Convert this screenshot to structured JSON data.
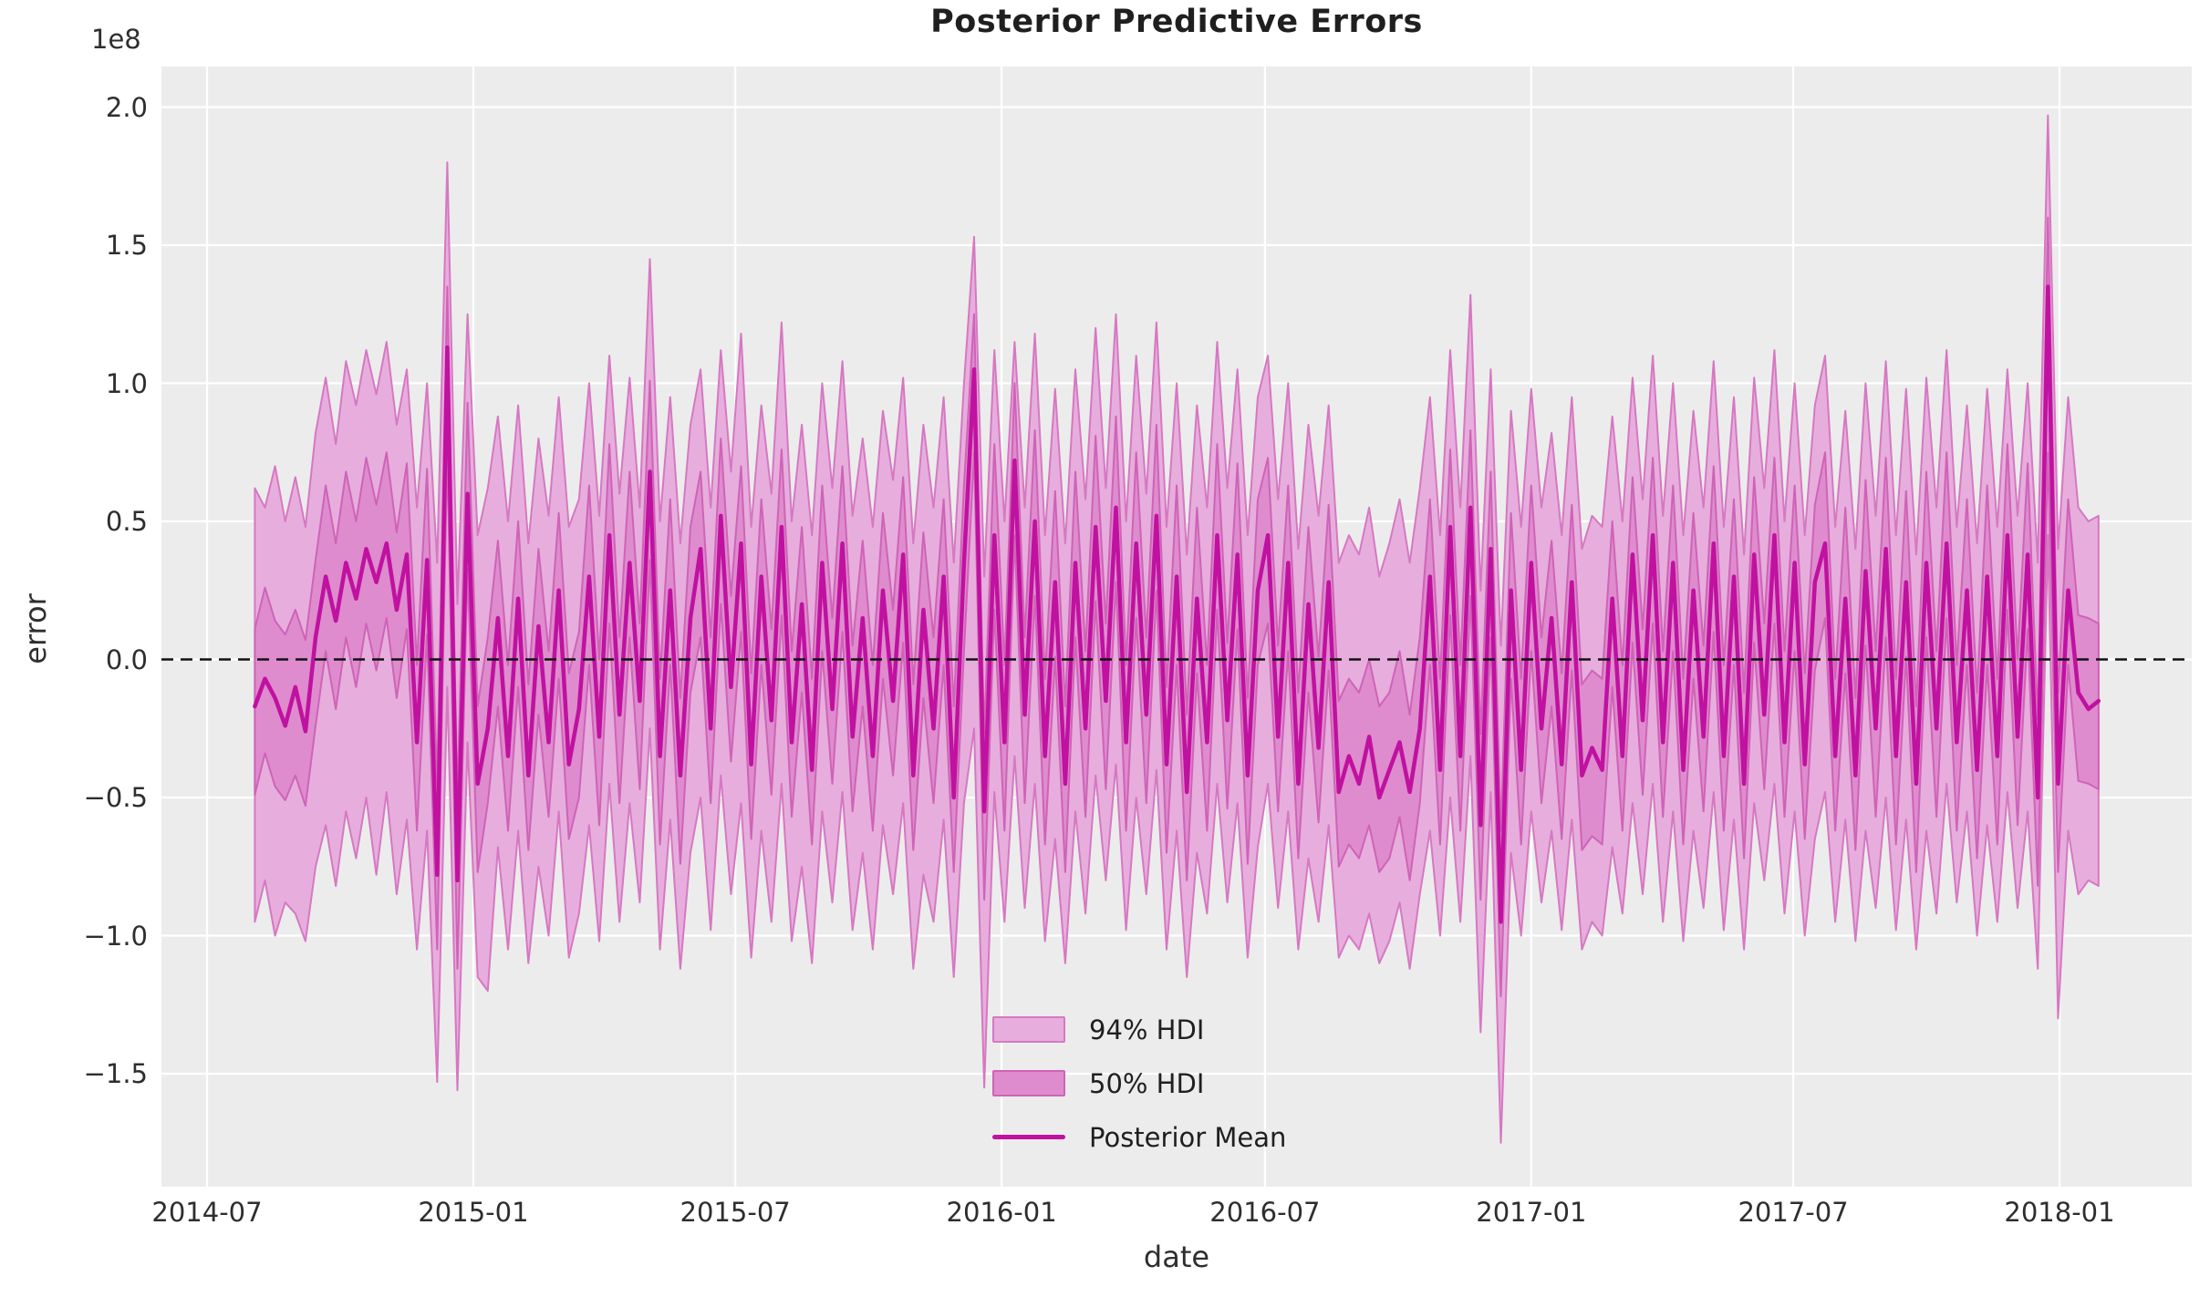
{
  "figure": {
    "title": "Posterior Predictive Errors",
    "xlabel": "date",
    "ylabel": "error",
    "offset_text": "1e8"
  },
  "legend": {
    "items": [
      {
        "label": "94% HDI",
        "type": "patch",
        "fill": "#e7aedd",
        "edge": "#d678c2"
      },
      {
        "label": "50% HDI",
        "type": "patch",
        "fill": "#de8cce",
        "edge": "#cf63b7"
      },
      {
        "label": "Posterior Mean",
        "type": "line",
        "color": "#c011a0"
      }
    ]
  },
  "colors": {
    "plot_background": "#ececec",
    "gridline": "#ffffff",
    "band94_fill": "#e7aedd",
    "band94_edge": "#d678c2",
    "band50_fill": "#de8cce",
    "band50_edge": "#cf63b7",
    "mean_line": "#c011a0",
    "zero_line": "#111111",
    "text": "#2e2e2e"
  },
  "chart_data": {
    "type": "line",
    "title": "Posterior Predictive Errors",
    "xlabel": "date",
    "ylabel": "error",
    "y_offset_factor": "1e8",
    "grid": true,
    "legend_position": "lower center-right, frameless",
    "legend_labels": [
      "94% HDI",
      "50% HDI",
      "Posterior Mean"
    ],
    "x_ticks": [
      {
        "label": "2014-07",
        "day": 0
      },
      {
        "label": "2015-01",
        "day": 184
      },
      {
        "label": "2015-07",
        "day": 365
      },
      {
        "label": "2016-01",
        "day": 549
      },
      {
        "label": "2016-07",
        "day": 731
      },
      {
        "label": "2017-01",
        "day": 915
      },
      {
        "label": "2017-07",
        "day": 1096
      },
      {
        "label": "2018-01",
        "day": 1280
      }
    ],
    "y_ticks": [
      {
        "label": "2.0",
        "value": 2.0
      },
      {
        "label": "1.5",
        "value": 1.5
      },
      {
        "label": "1.0",
        "value": 1.0
      },
      {
        "label": "0.5",
        "value": 0.5
      },
      {
        "label": "0.0",
        "value": 0.0
      },
      {
        "label": "−0.5",
        "value": -0.5
      },
      {
        "label": "−1.0",
        "value": -1.0
      },
      {
        "label": "−1.5",
        "value": -1.5
      }
    ],
    "ylim": [
      -1.91,
      2.15
    ],
    "xlim_days": [
      -31,
      1372
    ],
    "zero_reference_line": 0.0,
    "series": {
      "label": "Posterior Mean",
      "start_date": "2014-08-03",
      "step_days": 7,
      "start_day_offset": 33,
      "n_points": 183,
      "value_unit": "1e8",
      "mean": [
        -0.17,
        -0.07,
        -0.14,
        -0.24,
        -0.1,
        -0.26,
        0.08,
        0.3,
        0.14,
        0.35,
        0.22,
        0.4,
        0.28,
        0.42,
        0.18,
        0.38,
        -0.3,
        0.36,
        -0.78,
        1.13,
        -0.8,
        0.6,
        -0.45,
        -0.25,
        0.15,
        -0.35,
        0.22,
        -0.42,
        0.12,
        -0.3,
        0.25,
        -0.38,
        -0.18,
        0.3,
        -0.28,
        0.45,
        -0.2,
        0.35,
        -0.15,
        0.68,
        -0.35,
        0.25,
        -0.42,
        0.15,
        0.4,
        -0.25,
        0.52,
        -0.1,
        0.42,
        -0.38,
        0.3,
        -0.22,
        0.48,
        -0.3,
        0.2,
        -0.4,
        0.35,
        -0.18,
        0.42,
        -0.28,
        0.15,
        -0.35,
        0.25,
        -0.15,
        0.38,
        -0.42,
        0.18,
        -0.25,
        0.3,
        -0.5,
        0.35,
        1.05,
        -0.55,
        0.45,
        -0.3,
        0.72,
        -0.2,
        0.5,
        -0.35,
        0.28,
        -0.45,
        0.35,
        -0.25,
        0.48,
        -0.15,
        0.55,
        -0.3,
        0.42,
        -0.2,
        0.52,
        -0.38,
        0.3,
        -0.48,
        0.22,
        -0.3,
        0.45,
        -0.22,
        0.38,
        -0.42,
        0.25,
        0.45,
        -0.28,
        0.35,
        -0.45,
        0.2,
        -0.32,
        0.28,
        -0.48,
        -0.35,
        -0.45,
        -0.28,
        -0.5,
        -0.4,
        -0.3,
        -0.48,
        -0.25,
        0.3,
        -0.4,
        0.48,
        -0.35,
        0.55,
        -0.6,
        0.4,
        -0.95,
        0.25,
        -0.4,
        0.35,
        -0.25,
        0.15,
        -0.38,
        0.28,
        -0.42,
        -0.32,
        -0.4,
        0.22,
        -0.35,
        0.38,
        -0.22,
        0.45,
        -0.3,
        0.35,
        -0.4,
        0.25,
        -0.28,
        0.42,
        -0.35,
        0.3,
        -0.45,
        0.38,
        -0.2,
        0.45,
        -0.3,
        0.35,
        -0.38,
        0.28,
        0.42,
        -0.35,
        0.22,
        -0.42,
        0.32,
        -0.25,
        0.4,
        -0.35,
        0.28,
        -0.45,
        0.35,
        -0.25,
        0.42,
        -0.3,
        0.25,
        -0.4,
        0.3,
        -0.35,
        0.45,
        -0.28,
        0.38,
        -0.5,
        1.35,
        -0.45,
        0.25,
        -0.12,
        -0.18,
        -0.15
      ],
      "hdi50_upper": [
        0.11,
        0.26,
        0.14,
        0.09,
        0.18,
        0.07,
        0.36,
        0.63,
        0.42,
        0.68,
        0.5,
        0.73,
        0.56,
        0.75,
        0.46,
        0.71,
        -0.02,
        0.69,
        -0.45,
        1.35,
        -0.5,
        0.93,
        -0.17,
        0.08,
        0.43,
        -0.02,
        0.5,
        -0.09,
        0.4,
        0.03,
        0.53,
        -0.05,
        0.1,
        0.63,
        0.0,
        0.78,
        0.08,
        0.68,
        0.13,
        1.01,
        -0.07,
        0.58,
        -0.14,
        0.48,
        0.68,
        0.08,
        0.8,
        0.23,
        0.7,
        -0.05,
        0.58,
        0.11,
        0.76,
        0.03,
        0.48,
        -0.07,
        0.63,
        0.15,
        0.7,
        0.05,
        0.43,
        -0.02,
        0.53,
        0.18,
        0.66,
        -0.09,
        0.46,
        0.08,
        0.58,
        -0.17,
        0.63,
        1.25,
        -0.27,
        0.78,
        -0.02,
        1.0,
        0.08,
        0.83,
        -0.07,
        0.61,
        -0.17,
        0.68,
        0.03,
        0.81,
        0.13,
        0.88,
        -0.02,
        0.75,
        0.08,
        0.85,
        -0.1,
        0.63,
        -0.2,
        0.55,
        -0.02,
        0.78,
        0.06,
        0.71,
        -0.14,
        0.58,
        0.73,
        0.05,
        0.63,
        -0.12,
        0.48,
        0.01,
        0.56,
        -0.15,
        -0.07,
        -0.12,
        0.0,
        -0.17,
        -0.12,
        0.03,
        -0.2,
        0.08,
        0.58,
        -0.07,
        0.76,
        -0.02,
        0.83,
        -0.27,
        0.68,
        -0.62,
        0.53,
        -0.07,
        0.63,
        0.08,
        0.43,
        -0.05,
        0.56,
        -0.09,
        -0.04,
        -0.07,
        0.5,
        -0.02,
        0.66,
        0.11,
        0.73,
        0.03,
        0.63,
        -0.07,
        0.53,
        0.05,
        0.7,
        -0.02,
        0.58,
        -0.12,
        0.66,
        0.13,
        0.73,
        0.03,
        0.63,
        -0.05,
        0.56,
        0.75,
        -0.07,
        0.55,
        -0.14,
        0.65,
        0.03,
        0.73,
        -0.07,
        0.61,
        -0.17,
        0.68,
        0.03,
        0.75,
        -0.02,
        0.58,
        -0.12,
        0.63,
        -0.07,
        0.78,
        0.0,
        0.71,
        -0.22,
        1.6,
        -0.12,
        0.58,
        0.16,
        0.15,
        0.13
      ],
      "hdi50_lower": [
        -0.49,
        -0.34,
        -0.46,
        -0.51,
        -0.42,
        -0.53,
        -0.24,
        0.03,
        -0.18,
        0.08,
        -0.1,
        0.13,
        -0.04,
        0.15,
        -0.14,
        0.11,
        -0.62,
        0.09,
        -1.05,
        0.75,
        -1.12,
        0.33,
        -0.77,
        -0.52,
        -0.17,
        -0.62,
        -0.1,
        -0.69,
        -0.2,
        -0.57,
        -0.07,
        -0.65,
        -0.5,
        -0.02,
        -0.6,
        0.13,
        -0.52,
        0.08,
        -0.47,
        0.36,
        -0.67,
        -0.02,
        -0.74,
        -0.12,
        0.08,
        -0.52,
        0.2,
        -0.37,
        0.1,
        -0.65,
        -0.02,
        -0.49,
        0.16,
        -0.57,
        -0.12,
        -0.67,
        0.03,
        -0.45,
        0.1,
        -0.55,
        -0.17,
        -0.62,
        -0.07,
        -0.42,
        0.06,
        -0.69,
        -0.14,
        -0.52,
        -0.02,
        -0.77,
        0.03,
        0.75,
        -0.87,
        0.18,
        -0.62,
        0.45,
        -0.52,
        0.23,
        -0.67,
        0.01,
        -0.77,
        0.08,
        -0.57,
        0.21,
        -0.47,
        0.28,
        -0.62,
        0.15,
        -0.52,
        0.25,
        -0.7,
        -0.02,
        -0.8,
        -0.05,
        -0.62,
        0.18,
        -0.54,
        0.11,
        -0.74,
        -0.02,
        0.13,
        -0.55,
        0.03,
        -0.72,
        -0.12,
        -0.59,
        -0.04,
        -0.75,
        -0.67,
        -0.72,
        -0.6,
        -0.77,
        -0.72,
        -0.57,
        -0.8,
        -0.52,
        -0.02,
        -0.67,
        0.16,
        -0.62,
        0.23,
        -0.87,
        0.08,
        -1.22,
        -0.07,
        -0.67,
        0.03,
        -0.52,
        -0.17,
        -0.65,
        -0.04,
        -0.69,
        -0.64,
        -0.67,
        -0.1,
        -0.62,
        0.06,
        -0.49,
        0.13,
        -0.57,
        0.03,
        -0.67,
        -0.07,
        -0.55,
        0.1,
        -0.62,
        -0.02,
        -0.72,
        0.06,
        -0.47,
        0.13,
        -0.57,
        0.03,
        -0.65,
        -0.04,
        0.15,
        -0.62,
        -0.05,
        -0.69,
        0.05,
        -0.57,
        0.08,
        -0.67,
        0.01,
        -0.77,
        0.08,
        -0.57,
        0.15,
        -0.62,
        -0.02,
        -0.72,
        -0.02,
        -0.67,
        0.18,
        -0.6,
        0.11,
        -0.82,
        0.75,
        -0.77,
        -0.02,
        -0.44,
        -0.45,
        -0.47
      ],
      "hdi94_upper": [
        0.62,
        0.55,
        0.7,
        0.5,
        0.66,
        0.48,
        0.82,
        1.02,
        0.78,
        1.08,
        0.92,
        1.12,
        0.96,
        1.15,
        0.85,
        1.05,
        0.55,
        1.0,
        0.35,
        1.8,
        0.2,
        1.25,
        0.45,
        0.62,
        0.88,
        0.5,
        0.92,
        0.42,
        0.8,
        0.52,
        0.95,
        0.48,
        0.58,
        1.0,
        0.52,
        1.1,
        0.6,
        1.02,
        0.55,
        1.45,
        0.5,
        0.95,
        0.42,
        0.85,
        1.05,
        0.55,
        1.12,
        0.68,
        1.18,
        0.48,
        0.92,
        0.6,
        1.22,
        0.5,
        0.85,
        0.45,
        1.0,
        0.62,
        1.08,
        0.52,
        0.8,
        0.48,
        0.9,
        0.65,
        1.02,
        0.42,
        0.85,
        0.55,
        0.95,
        0.35,
        1.0,
        1.53,
        0.3,
        1.12,
        0.5,
        1.15,
        0.55,
        1.18,
        0.45,
        0.98,
        0.42,
        1.05,
        0.58,
        1.2,
        0.62,
        1.25,
        0.5,
        1.1,
        0.6,
        1.22,
        0.48,
        1.0,
        0.38,
        0.92,
        0.55,
        1.15,
        0.62,
        1.05,
        0.45,
        0.95,
        1.1,
        0.58,
        1.0,
        0.4,
        0.85,
        0.52,
        0.92,
        0.35,
        0.45,
        0.38,
        0.55,
        0.3,
        0.42,
        0.58,
        0.35,
        0.62,
        0.95,
        0.45,
        1.12,
        0.55,
        1.32,
        0.25,
        1.05,
        0.05,
        0.9,
        0.48,
        0.98,
        0.55,
        0.82,
        0.45,
        0.95,
        0.4,
        0.52,
        0.48,
        0.88,
        0.5,
        1.02,
        0.58,
        1.1,
        0.52,
        1.0,
        0.45,
        0.9,
        0.55,
        1.08,
        0.48,
        0.95,
        0.38,
        1.02,
        0.62,
        1.12,
        0.5,
        1.0,
        0.45,
        0.92,
        1.1,
        0.48,
        0.9,
        0.4,
        1.0,
        0.52,
        1.08,
        0.45,
        0.98,
        0.38,
        1.02,
        0.55,
        1.12,
        0.48,
        0.92,
        0.42,
        0.98,
        0.48,
        1.05,
        0.52,
        1.0,
        0.35,
        1.97,
        0.4,
        0.95,
        0.55,
        0.5,
        0.52
      ],
      "hdi94_lower": [
        -0.95,
        -0.8,
        -1.0,
        -0.88,
        -0.92,
        -1.02,
        -0.75,
        -0.6,
        -0.82,
        -0.55,
        -0.72,
        -0.5,
        -0.78,
        -0.48,
        -0.85,
        -0.58,
        -1.05,
        -0.62,
        -1.53,
        -0.1,
        -1.56,
        -0.3,
        -1.15,
        -1.2,
        -0.68,
        -1.05,
        -0.62,
        -1.1,
        -0.75,
        -1.0,
        -0.55,
        -1.08,
        -0.92,
        -0.6,
        -1.02,
        -0.45,
        -0.95,
        -0.52,
        -0.88,
        -0.25,
        -1.05,
        -0.58,
        -1.12,
        -0.7,
        -0.5,
        -0.98,
        -0.42,
        -0.85,
        -0.52,
        -1.08,
        -0.62,
        -0.95,
        -0.45,
        -1.02,
        -0.75,
        -1.1,
        -0.55,
        -0.88,
        -0.48,
        -0.98,
        -0.7,
        -1.05,
        -0.6,
        -0.85,
        -0.52,
        -1.12,
        -0.78,
        -0.95,
        -0.58,
        -1.15,
        -0.52,
        -0.25,
        -1.55,
        -0.48,
        -0.95,
        -0.35,
        -0.9,
        -0.45,
        -1.02,
        -0.65,
        -1.1,
        -0.55,
        -0.92,
        -0.42,
        -0.8,
        -0.38,
        -0.98,
        -0.5,
        -0.85,
        -0.4,
        -1.05,
        -0.62,
        -1.15,
        -0.7,
        -0.92,
        -0.45,
        -0.88,
        -0.52,
        -1.08,
        -0.68,
        -0.45,
        -0.9,
        -0.55,
        -1.05,
        -0.72,
        -0.95,
        -0.6,
        -1.08,
        -1.0,
        -1.05,
        -0.92,
        -1.1,
        -1.02,
        -0.88,
        -1.12,
        -0.85,
        -0.62,
        -1.0,
        -0.5,
        -0.95,
        -0.35,
        -1.35,
        -0.48,
        -1.75,
        -0.7,
        -1.0,
        -0.55,
        -0.88,
        -0.62,
        -0.98,
        -0.58,
        -1.05,
        -0.95,
        -1.0,
        -0.68,
        -0.92,
        -0.52,
        -0.85,
        -0.45,
        -0.95,
        -0.55,
        -1.02,
        -0.62,
        -0.9,
        -0.48,
        -0.98,
        -0.58,
        -1.05,
        -0.52,
        -0.8,
        -0.45,
        -0.92,
        -0.55,
        -1.0,
        -0.65,
        -0.48,
        -0.95,
        -0.58,
        -1.02,
        -0.62,
        -0.9,
        -0.5,
        -0.98,
        -0.58,
        -1.05,
        -0.62,
        -0.92,
        -0.45,
        -0.88,
        -0.55,
        -1.0,
        -0.6,
        -0.95,
        -0.48,
        -0.9,
        -0.55,
        -1.12,
        0.45,
        -1.3,
        -0.62,
        -0.85,
        -0.8,
        -0.82
      ]
    }
  }
}
